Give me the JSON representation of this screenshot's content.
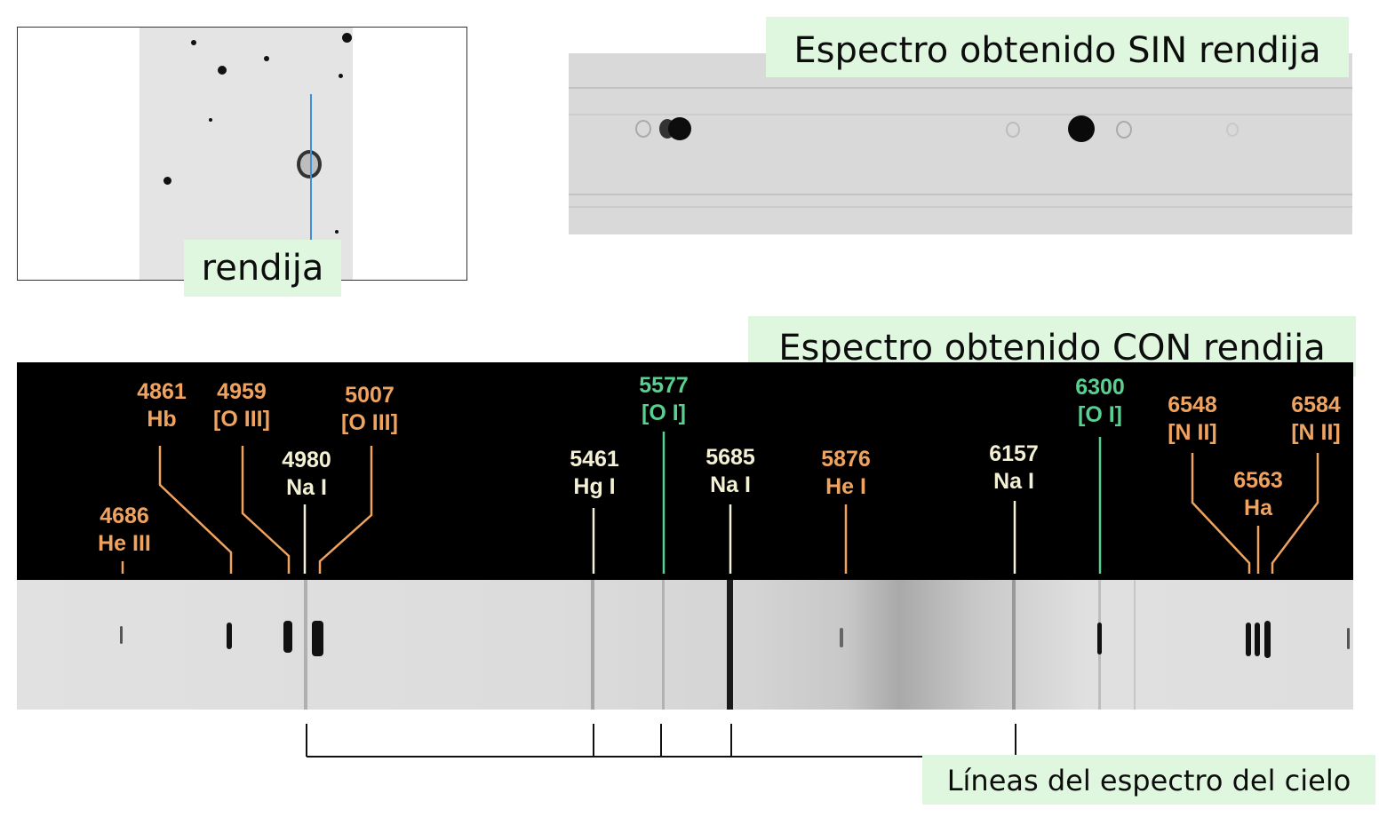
{
  "slit_image": {
    "label": "rendija"
  },
  "slitless": {
    "title": "Espectro obtenido SIN rendija"
  },
  "slit_spectrum": {
    "title": "Espectro obtenido CON rendija",
    "lines": [
      {
        "id": "he3-4686",
        "wavelength": "4686",
        "species": "He III",
        "color": "orange"
      },
      {
        "id": "hb-4861",
        "wavelength": "4861",
        "species": "Hb",
        "color": "orange"
      },
      {
        "id": "o3-4959",
        "wavelength": "4959",
        "species": "[O III]",
        "color": "orange"
      },
      {
        "id": "na1-4980",
        "wavelength": "4980",
        "species": "Na I",
        "color": "white"
      },
      {
        "id": "o3-5007",
        "wavelength": "5007",
        "species": "[O III]",
        "color": "orange"
      },
      {
        "id": "hg1-5461",
        "wavelength": "5461",
        "species": "Hg I",
        "color": "white"
      },
      {
        "id": "o1-5577",
        "wavelength": "5577",
        "species": "[O I]",
        "color": "green"
      },
      {
        "id": "na1-5685",
        "wavelength": "5685",
        "species": "Na I",
        "color": "white"
      },
      {
        "id": "he1-5876",
        "wavelength": "5876",
        "species": "He I",
        "color": "orange"
      },
      {
        "id": "na1-6157",
        "wavelength": "6157",
        "species": "Na I",
        "color": "white"
      },
      {
        "id": "o1-6300",
        "wavelength": "6300",
        "species": "[O I]",
        "color": "green"
      },
      {
        "id": "n2-6548",
        "wavelength": "6548",
        "species": "[N II]",
        "color": "orange"
      },
      {
        "id": "ha-6563",
        "wavelength": "6563",
        "species": "Ha",
        "color": "orange"
      },
      {
        "id": "n2-6584",
        "wavelength": "6584",
        "species": "[N II]",
        "color": "orange"
      }
    ]
  },
  "sky_lines": {
    "label": "Líneas del espectro del cielo"
  },
  "colors": {
    "orange": "#f0a35e",
    "white": "#f3f0d4",
    "green": "#58d08f",
    "label_bg": "#e0f7df",
    "slit_line": "#3d8fd6"
  }
}
